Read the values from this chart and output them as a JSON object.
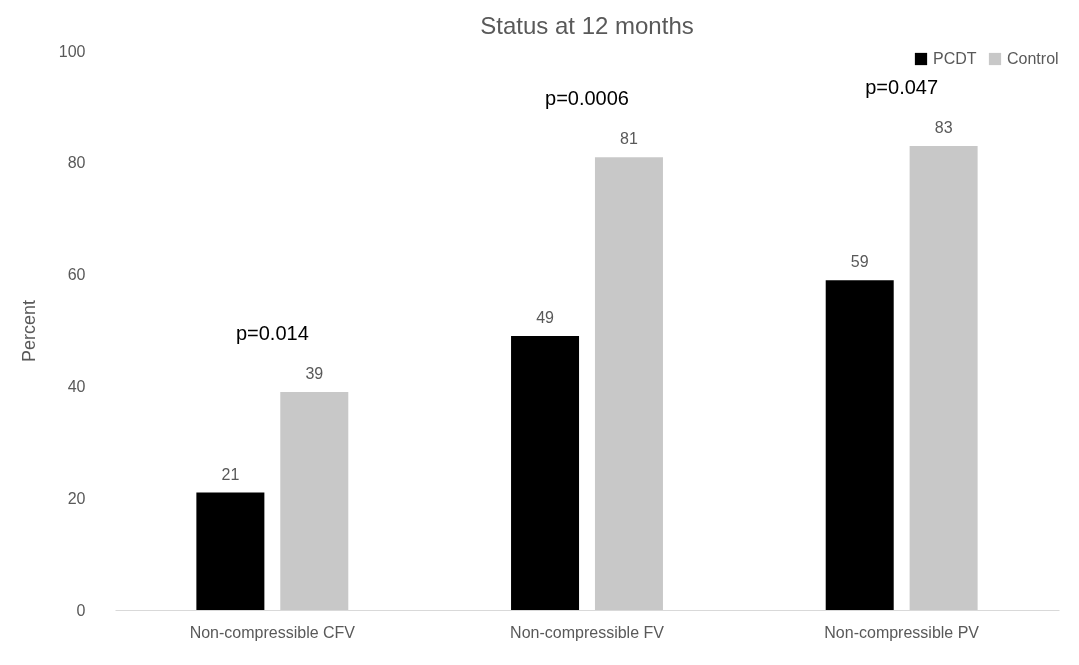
{
  "chart_data": {
    "type": "bar",
    "title": "Status at 12 months",
    "ylabel": "Percent",
    "categories": [
      "Non-compressible CFV",
      "Non-compressible FV",
      "Non-compressible PV"
    ],
    "series": [
      {
        "name": "PCDT",
        "color": "#000000",
        "values": [
          21,
          49,
          59
        ]
      },
      {
        "name": "Control",
        "color": "#c8c8c8",
        "values": [
          39,
          81,
          83
        ]
      }
    ],
    "ylim": [
      0,
      100
    ],
    "yticks": [
      0,
      20,
      40,
      60,
      80,
      100
    ],
    "grid": false,
    "legend": "top right",
    "data_labels": true,
    "annotations": [
      "p=0.014",
      "p=0.0006",
      "p=0.047"
    ]
  }
}
